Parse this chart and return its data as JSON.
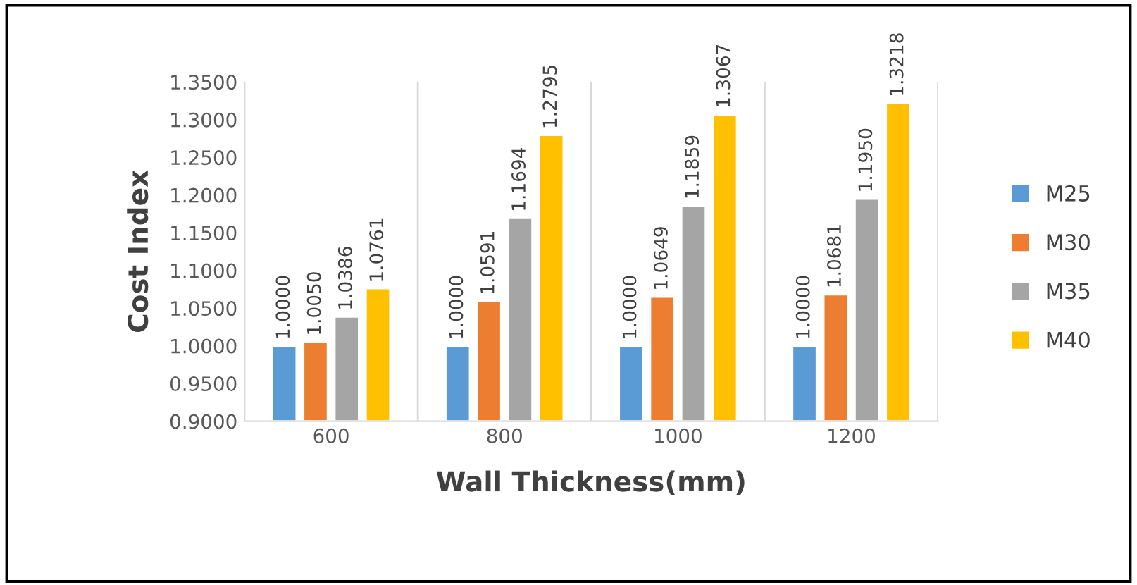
{
  "chart_data": {
    "type": "bar",
    "xlabel": "Wall Thickness(mm)",
    "ylabel": "Cost Index",
    "categories": [
      "600",
      "800",
      "1000",
      "1200"
    ],
    "series": [
      {
        "name": "M25",
        "color": "#5b9bd5",
        "values": [
          1.0,
          1.0,
          1.0,
          1.0
        ],
        "value_labels": [
          "1.0000",
          "1.0000",
          "1.0000",
          "1.0000"
        ]
      },
      {
        "name": "M30",
        "color": "#ed7d31",
        "values": [
          1.005,
          1.0591,
          1.0649,
          1.0681
        ],
        "value_labels": [
          "1.0050",
          "1.0591",
          "1.0649",
          "1.0681"
        ]
      },
      {
        "name": "M35",
        "color": "#a5a5a5",
        "values": [
          1.0386,
          1.1694,
          1.1859,
          1.195
        ],
        "value_labels": [
          "1.0386",
          "1.1694",
          "1.1859",
          "1.1950"
        ]
      },
      {
        "name": "M40",
        "color": "#ffc000",
        "values": [
          1.0761,
          1.2795,
          1.3067,
          1.3218
        ],
        "value_labels": [
          "1.0761",
          "1.2795",
          "1.3067",
          "1.3218"
        ]
      }
    ],
    "ylim": [
      0.9,
      1.35
    ],
    "yticks": [
      {
        "value": 0.9,
        "label": "0.9000"
      },
      {
        "value": 0.95,
        "label": "0.9500"
      },
      {
        "value": 1.0,
        "label": "1.0000"
      },
      {
        "value": 1.05,
        "label": "1.0500"
      },
      {
        "value": 1.1,
        "label": "1.1000"
      },
      {
        "value": 1.15,
        "label": "1.1500"
      },
      {
        "value": 1.2,
        "label": "1.2000"
      },
      {
        "value": 1.25,
        "label": "1.2500"
      },
      {
        "value": 1.3,
        "label": "1.3000"
      },
      {
        "value": 1.35,
        "label": "1.3500"
      }
    ],
    "grid": "x",
    "legend": "right"
  }
}
